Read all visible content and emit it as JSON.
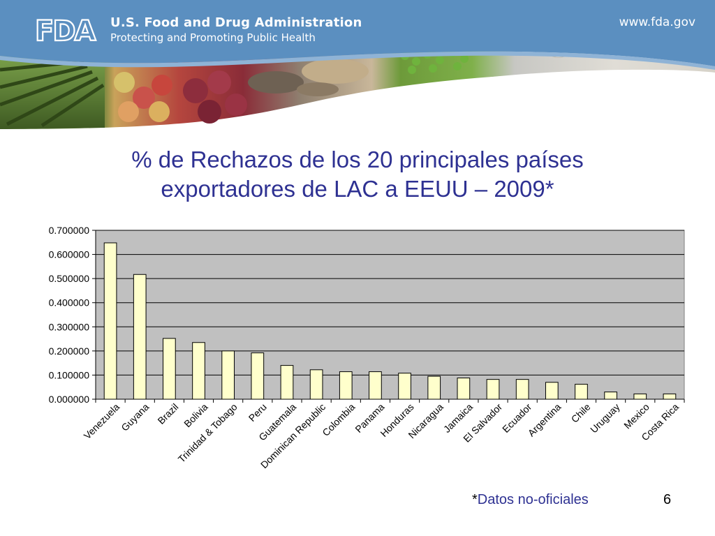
{
  "header": {
    "logo_text": "FDA",
    "agency_name": "U.S. Food and Drug Administration",
    "tagline": "Protecting and Promoting Public Health",
    "website": "www.fda.gov",
    "colors": {
      "banner": "#5b8fc0",
      "banner_light": "#8fb3d6"
    }
  },
  "slide": {
    "title_line1": "% de Rechazos de los 20 principales países",
    "title_line2": "exportadores de LAC a EEUU – 2009*",
    "footnote_star": "*",
    "footnote_text": "Datos no-oficiales",
    "page_number": "6"
  },
  "chart_data": {
    "type": "bar",
    "categories": [
      "Venezuela",
      "Guyana",
      "Brazil",
      "Bolivia",
      "Trinidad & Tobago",
      "Peru",
      "Guatemala",
      "Dominican Republic",
      "Colombia",
      "Panama",
      "Honduras",
      "Nicaragua",
      "Jamaica",
      "El Salvador",
      "Ecuador",
      "Argentina",
      "Chile",
      "Uruguay",
      "Mexico",
      "Costa Rica"
    ],
    "values": [
      0.648,
      0.517,
      0.252,
      0.235,
      0.2,
      0.192,
      0.14,
      0.122,
      0.114,
      0.114,
      0.108,
      0.095,
      0.088,
      0.082,
      0.082,
      0.07,
      0.062,
      0.03,
      0.022,
      0.022
    ],
    "yticks": [
      "0.000000",
      "0.100000",
      "0.200000",
      "0.300000",
      "0.400000",
      "0.500000",
      "0.600000",
      "0.700000"
    ],
    "ylim": [
      0,
      0.7
    ],
    "grid": true,
    "legend": "none",
    "colors": {
      "bar_fill": "#ffffcc",
      "bar_stroke": "#000000",
      "plot_bg": "#c0c0c0",
      "grid": "#000000"
    }
  }
}
